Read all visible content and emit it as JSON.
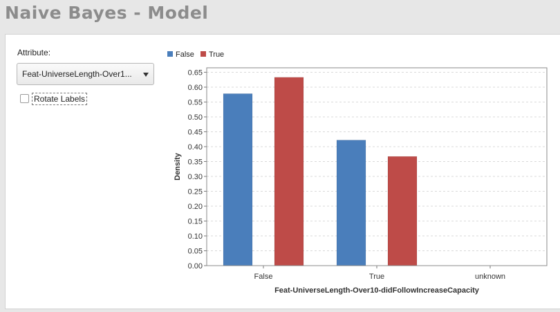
{
  "page": {
    "title": "Naive Bayes - Model"
  },
  "controls": {
    "attribute_label": "Attribute:",
    "attribute_value": "Feat-UniverseLength-Over1...",
    "rotate_labels_label": "Rotate Labels",
    "rotate_labels_checked": false
  },
  "colors": {
    "false_series": "#4a7ebb",
    "true_series": "#be4b48"
  },
  "chart_data": {
    "type": "bar",
    "categories": [
      "False",
      "True",
      "unknown"
    ],
    "series": [
      {
        "name": "False",
        "values": [
          0.578,
          0.422,
          0.0
        ],
        "color": "#4a7ebb"
      },
      {
        "name": "True",
        "values": [
          0.633,
          0.367,
          0.0
        ],
        "color": "#be4b48"
      }
    ],
    "yticks": [
      "0.00",
      "0.05",
      "0.10",
      "0.15",
      "0.20",
      "0.25",
      "0.30",
      "0.35",
      "0.40",
      "0.45",
      "0.50",
      "0.55",
      "0.60",
      "0.65"
    ],
    "ylim": [
      0,
      0.665
    ],
    "xlabel": "Feat-UniverseLength-Over10-didFollowIncreaseCapacity",
    "ylabel": "Density",
    "legend_position": "top-left",
    "grid": true
  }
}
